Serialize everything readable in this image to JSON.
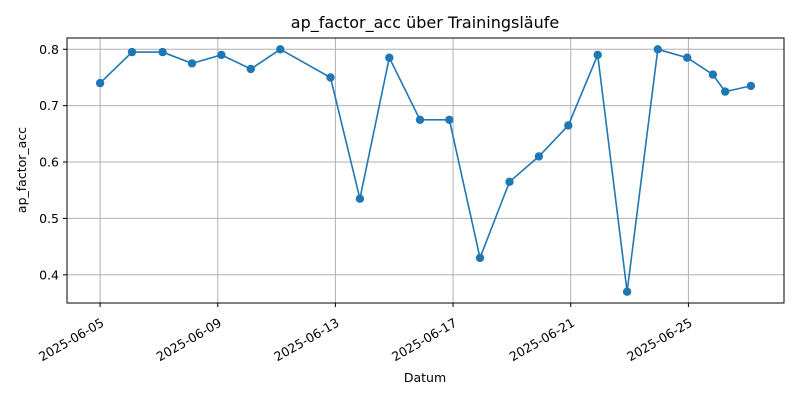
{
  "chart_data": {
    "type": "line",
    "title": "ap_factor_acc über Trainingsläufe",
    "xlabel": "Datum",
    "ylabel": "ap_factor_acc",
    "grid": true,
    "x_type": "date",
    "xlim": [
      "2025-06-03 21:00",
      "2025-06-28 06:00"
    ],
    "ylim": [
      0.35,
      0.82
    ],
    "x_ticks": [
      "2025-06-05",
      "2025-06-09",
      "2025-06-13",
      "2025-06-17",
      "2025-06-21",
      "2025-06-25"
    ],
    "y_ticks": [
      "0.4",
      "0.5",
      "0.6",
      "0.7",
      "0.8"
    ],
    "series": [
      {
        "color": "#1f77b4",
        "x": [
          "2025-06-05 00:00",
          "2025-06-06 02:00",
          "2025-06-07 03:00",
          "2025-06-08 03:00",
          "2025-06-09 03:00",
          "2025-06-10 03:00",
          "2025-06-11 03:00",
          "2025-06-12 20:00",
          "2025-06-13 20:00",
          "2025-06-14 20:00",
          "2025-06-15 21:00",
          "2025-06-16 21:00",
          "2025-06-17 22:00",
          "2025-06-18 22:00",
          "2025-06-19 22:00",
          "2025-06-20 22:00",
          "2025-06-21 22:00",
          "2025-06-22 22:00",
          "2025-06-23 23:00",
          "2025-06-24 23:00",
          "2025-06-25 20:00",
          "2025-06-26 06:00",
          "2025-06-27 03:00"
        ],
        "y": [
          0.74,
          0.795,
          0.795,
          0.775,
          0.79,
          0.765,
          0.8,
          0.75,
          0.535,
          0.785,
          0.675,
          0.675,
          0.43,
          0.565,
          0.61,
          0.665,
          0.79,
          0.37,
          0.8,
          0.785,
          0.755,
          0.725,
          0.735
        ]
      }
    ]
  }
}
